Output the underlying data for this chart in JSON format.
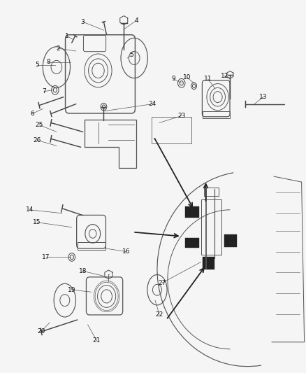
{
  "bg_color": "#f5f5f5",
  "line_color": "#555555",
  "dark_color": "#222222",
  "fig_width": 4.38,
  "fig_height": 5.33,
  "dpi": 100,
  "lw": 0.7
}
